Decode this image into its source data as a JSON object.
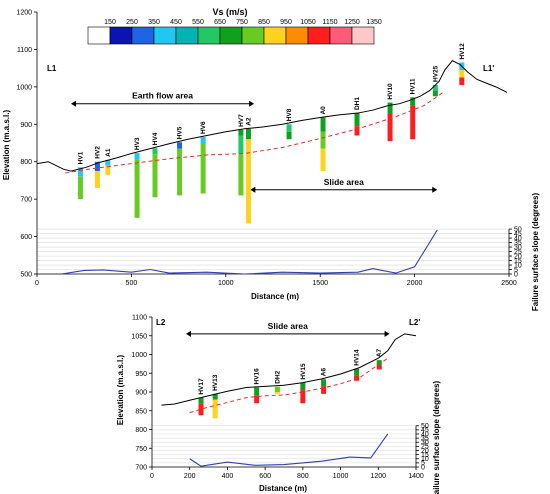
{
  "legend": {
    "title": "Vs (m/s)",
    "labels": [
      "150",
      "250",
      "350",
      "450",
      "550",
      "650",
      "750",
      "850",
      "950",
      "1050",
      "1150",
      "1250",
      "1350"
    ],
    "colors": [
      "#ffffff",
      "#0a14b4",
      "#1e64e6",
      "#20c8f0",
      "#00b4b4",
      "#22c864",
      "#10a020",
      "#66cc22",
      "#ffd21e",
      "#ff8c00",
      "#ff1e1e",
      "#ff5a78",
      "#ffc8c8"
    ]
  },
  "chart_data": [
    {
      "type": "line",
      "name": "top-section",
      "section_labels": [
        "L1",
        "L1'"
      ],
      "xlabel": "Distance (m)",
      "ylabel": "Elevation (m.a.s.l.)",
      "xlim": [
        0,
        2500
      ],
      "ylim": [
        500,
        1200
      ],
      "xticks": [
        "0",
        "500",
        "1000",
        "1500",
        "2000",
        "2500"
      ],
      "yticks": [
        "500",
        "600",
        "700",
        "800",
        "900",
        "1000",
        "1100",
        "1200"
      ],
      "ylabel2": "Failure surface slope (degrees)",
      "y2ticks": [
        "0",
        "5",
        "10",
        "15",
        "20",
        "25",
        "30",
        "35",
        "40",
        "45",
        "50"
      ],
      "y2lim": [
        0,
        50
      ],
      "y2_range_elev": [
        500,
        620
      ],
      "areas": [
        {
          "label": "Earth flow area",
          "x0": 180,
          "x1": 1150,
          "y": 955
        },
        {
          "label": "Slide area",
          "x0": 1130,
          "x1": 2120,
          "y": 725
        }
      ],
      "topography": {
        "x": [
          0,
          60,
          100,
          140,
          180,
          260,
          330,
          420,
          500,
          600,
          700,
          800,
          900,
          1000,
          1100,
          1200,
          1300,
          1400,
          1500,
          1600,
          1700,
          1780,
          1860,
          1920,
          1980,
          2030,
          2080,
          2130,
          2160,
          2200,
          2240,
          2280,
          2330,
          2380,
          2430,
          2490
        ],
        "y": [
          795,
          800,
          790,
          780,
          775,
          785,
          798,
          810,
          822,
          835,
          848,
          860,
          870,
          880,
          888,
          893,
          900,
          910,
          918,
          925,
          930,
          938,
          950,
          955,
          965,
          975,
          990,
          1015,
          1045,
          1070,
          1060,
          1040,
          1020,
          1010,
          1000,
          985
        ]
      },
      "failure_surface": {
        "x": [
          150,
          300,
          500,
          700,
          900,
          1100,
          1300,
          1500,
          1700,
          1900,
          2050,
          2150
        ],
        "y": [
          770,
          782,
          795,
          808,
          818,
          822,
          838,
          862,
          888,
          920,
          950,
          985
        ]
      },
      "slope_curve": {
        "x": [
          130,
          250,
          350,
          500,
          600,
          700,
          900,
          1100,
          1300,
          1500,
          1700,
          1780,
          1900,
          2000,
          2120
        ],
        "y": [
          0,
          4,
          4.5,
          2,
          5,
          1,
          2,
          0,
          2,
          1,
          2,
          6,
          1,
          8,
          49
        ]
      },
      "boreholes": [
        {
          "name": "HV1",
          "x": 230,
          "top": 785,
          "segs": [
            [
              785,
              760,
              "#20c8f0"
            ],
            [
              760,
              700,
              "#66cc22"
            ]
          ]
        },
        {
          "name": "HV2",
          "x": 320,
          "top": 800,
          "segs": [
            [
              800,
              775,
              "#1e64e6"
            ],
            [
              775,
              730,
              "#ffd21e"
            ]
          ]
        },
        {
          "name": "A1",
          "x": 375,
          "top": 805,
          "segs": [
            [
              805,
              790,
              "#20c8f0"
            ],
            [
              790,
              765,
              "#ffd21e"
            ]
          ]
        },
        {
          "name": "HV3",
          "x": 530,
          "top": 823,
          "segs": [
            [
              823,
              805,
              "#20c8f0"
            ],
            [
              805,
              650,
              "#66cc22"
            ]
          ]
        },
        {
          "name": "HV4",
          "x": 625,
          "top": 836,
          "segs": [
            [
              836,
              820,
              "#22c864"
            ],
            [
              820,
              705,
              "#66cc22"
            ]
          ]
        },
        {
          "name": "HV5",
          "x": 755,
          "top": 852,
          "segs": [
            [
              852,
              835,
              "#1e64e6"
            ],
            [
              835,
              710,
              "#66cc22"
            ]
          ]
        },
        {
          "name": "HV6",
          "x": 880,
          "top": 866,
          "segs": [
            [
              866,
              850,
              "#20c8f0"
            ],
            [
              850,
              715,
              "#66cc22"
            ]
          ]
        },
        {
          "name": "HV7",
          "x": 1080,
          "top": 885,
          "segs": [
            [
              885,
              870,
              "#10a020"
            ],
            [
              870,
              820,
              "#22c864"
            ],
            [
              820,
              710,
              "#66cc22"
            ]
          ]
        },
        {
          "name": "A2",
          "x": 1120,
          "top": 888,
          "segs": [
            [
              888,
              860,
              "#10a020"
            ],
            [
              860,
              635,
              "#ffd21e"
            ]
          ]
        },
        {
          "name": "HV8",
          "x": 1335,
          "top": 900,
          "segs": [
            [
              900,
              880,
              "#22c864"
            ],
            [
              880,
              860,
              "#10a020"
            ]
          ]
        },
        {
          "name": "A0",
          "x": 1515,
          "top": 918,
          "segs": [
            [
              918,
              880,
              "#10a020"
            ],
            [
              880,
              835,
              "#66cc22"
            ],
            [
              835,
              775,
              "#ffd21e"
            ]
          ]
        },
        {
          "name": "DH1",
          "x": 1695,
          "top": 930,
          "segs": [
            [
              930,
              895,
              "#10a020"
            ],
            [
              895,
              870,
              "#ff1e1e"
            ]
          ]
        },
        {
          "name": "HV10",
          "x": 1870,
          "top": 958,
          "segs": [
            [
              958,
              930,
              "#10a020"
            ],
            [
              930,
              855,
              "#ff1e1e"
            ]
          ]
        },
        {
          "name": "HV11",
          "x": 1990,
          "top": 972,
          "segs": [
            [
              972,
              950,
              "#10a020"
            ],
            [
              950,
              860,
              "#ff1e1e"
            ]
          ]
        },
        {
          "name": "HV25",
          "x": 2110,
          "top": 1005,
          "segs": [
            [
              1005,
              990,
              "#22c864"
            ],
            [
              990,
              975,
              "#10a020"
            ]
          ]
        },
        {
          "name": "HV12",
          "x": 2250,
          "top": 1065,
          "segs": [
            [
              1065,
              1045,
              "#20c8f0"
            ],
            [
              1045,
              1025,
              "#ffd21e"
            ],
            [
              1025,
              1005,
              "#ff1e1e"
            ]
          ]
        }
      ]
    },
    {
      "type": "line",
      "name": "bottom-section",
      "section_labels": [
        "L2",
        "L2'"
      ],
      "xlabel": "Distance (m)",
      "ylabel": "Elevation (m.a.s.l.)",
      "xlim": [
        0,
        1400
      ],
      "ylim": [
        700,
        1100
      ],
      "xticks": [
        "0",
        "200",
        "400",
        "600",
        "800",
        "1000",
        "1200",
        "1400"
      ],
      "yticks": [
        "700",
        "750",
        "800",
        "850",
        "900",
        "950",
        "1000",
        "1050",
        "1100"
      ],
      "ylabel2": "Failure surface slope (degrees)",
      "y2ticks": [
        "0",
        "5",
        "10",
        "15",
        "20",
        "25",
        "30",
        "35",
        "40",
        "45",
        "50"
      ],
      "y2lim": [
        0,
        50
      ],
      "y2_range_elev": [
        700,
        810
      ],
      "areas": [
        {
          "label": "Slide area",
          "x0": 180,
          "x1": 1260,
          "y": 1055
        }
      ],
      "topography": {
        "x": [
          50,
          120,
          200,
          300,
          400,
          500,
          600,
          700,
          800,
          900,
          1000,
          1100,
          1200,
          1250,
          1290,
          1340,
          1400
        ],
        "y": [
          865,
          868,
          878,
          890,
          902,
          912,
          915,
          918,
          925,
          935,
          948,
          965,
          990,
          1010,
          1040,
          1055,
          1050
        ]
      },
      "failure_surface": {
        "x": [
          200,
          300,
          400,
          500,
          600,
          700,
          800,
          900,
          1000,
          1100,
          1250
        ],
        "y": [
          845,
          860,
          872,
          885,
          890,
          892,
          900,
          910,
          922,
          938,
          990
        ]
      },
      "slope_curve": {
        "x": [
          200,
          260,
          400,
          550,
          700,
          900,
          1050,
          1160,
          1250
        ],
        "y": [
          10,
          1,
          6,
          2,
          3,
          7,
          12,
          11,
          40
        ]
      },
      "boreholes": [
        {
          "name": "HV17",
          "x": 260,
          "top": 885,
          "segs": [
            [
              885,
              870,
              "#10a020"
            ],
            [
              870,
              838,
              "#ff1e1e"
            ]
          ]
        },
        {
          "name": "HV13",
          "x": 335,
          "top": 895,
          "segs": [
            [
              895,
              880,
              "#10a020"
            ],
            [
              880,
              830,
              "#ffd21e"
            ]
          ]
        },
        {
          "name": "HV16",
          "x": 555,
          "top": 912,
          "segs": [
            [
              912,
              890,
              "#10a020"
            ],
            [
              890,
              870,
              "#ff1e1e"
            ]
          ]
        },
        {
          "name": "DH2",
          "x": 665,
          "top": 914,
          "segs": [
            [
              914,
              900,
              "#66cc22"
            ],
            [
              900,
              895,
              "#ffd21e"
            ]
          ]
        },
        {
          "name": "HV15",
          "x": 800,
          "top": 925,
          "segs": [
            [
              925,
              905,
              "#10a020"
            ],
            [
              905,
              870,
              "#ff1e1e"
            ]
          ]
        },
        {
          "name": "A6",
          "x": 910,
          "top": 934,
          "segs": [
            [
              934,
              915,
              "#10a020"
            ],
            [
              915,
              895,
              "#ff1e1e"
            ]
          ]
        },
        {
          "name": "HV14",
          "x": 1085,
          "top": 962,
          "segs": [
            [
              962,
              945,
              "#10a020"
            ],
            [
              945,
              930,
              "#ff1e1e"
            ]
          ]
        },
        {
          "name": "A7",
          "x": 1205,
          "top": 985,
          "segs": [
            [
              985,
              972,
              "#10a020"
            ],
            [
              972,
              960,
              "#ff1e1e"
            ]
          ]
        }
      ]
    }
  ]
}
